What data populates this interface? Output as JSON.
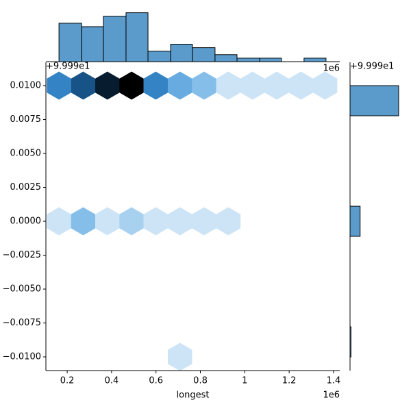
{
  "chart_data": [
    {
      "type": "hexbin",
      "x": [
        0.163,
        0.272,
        0.381,
        0.49,
        0.599,
        0.708,
        0.817,
        0.926,
        1.035,
        1.144,
        1.253,
        1.362,
        0.163,
        0.272,
        0.381,
        0.49,
        0.599,
        0.708,
        0.817,
        0.926,
        0.708
      ],
      "y": [
        0.01,
        0.01,
        0.01,
        0.01,
        0.01,
        0.01,
        0.01,
        0.01,
        0.01,
        0.01,
        0.01,
        0.01,
        0,
        0,
        0,
        0,
        0,
        0,
        0,
        0,
        -0.01
      ],
      "values": [
        6,
        8,
        10,
        11,
        6,
        4,
        3,
        1,
        1,
        1,
        1,
        1,
        1,
        3,
        1,
        2,
        1,
        1,
        1,
        1,
        1
      ],
      "cmap": [
        "#f1f7fd",
        "#8cc3eb",
        "#3b8fd4",
        "#154d80",
        "#000000"
      ],
      "xlim": [
        0.104,
        1.428
      ],
      "ylim": [
        -0.01101,
        0.01172
      ],
      "xticks": [
        0.2,
        0.4,
        0.6,
        0.8,
        1.0,
        1.2,
        1.4
      ],
      "yticks": [
        {
          "value": 0.01,
          "label": "0.0100"
        },
        {
          "value": 0.0075,
          "label": "0.0075"
        },
        {
          "value": 0.005,
          "label": "0.0050"
        },
        {
          "value": 0.0025,
          "label": "0.0025"
        },
        {
          "value": 0,
          "label": "0.0000"
        },
        {
          "value": -0.0025,
          "label": "−0.0025"
        },
        {
          "value": -0.005,
          "label": "−0.0050"
        },
        {
          "value": -0.0075,
          "label": "−0.0075"
        },
        {
          "value": -0.01,
          "label": "−0.0100"
        }
      ],
      "x_label": "longest",
      "x_offset_label": "1e6",
      "y_offset_label": "+9.999e1"
    },
    {
      "type": "histogram",
      "orientation": "vertical",
      "color": "#5a9bcb",
      "bins": [
        0.163,
        0.265,
        0.363,
        0.465,
        0.564,
        0.666,
        0.764,
        0.866,
        0.965,
        1.067,
        1.165,
        1.267,
        1.366
      ],
      "counts": [
        11,
        10,
        13,
        14,
        3,
        5,
        4,
        2,
        1,
        1,
        0,
        1
      ],
      "xlim": [
        0.104,
        1.428
      ],
      "ylim": [
        0,
        14.7
      ],
      "x_offset_label": "1e6"
    },
    {
      "type": "histogram",
      "orientation": "horizontal",
      "color": "#5a9bcb",
      "bins": [
        -0.01,
        -0.00778,
        -0.00556,
        -0.00333,
        -0.00111,
        0.00111,
        0.00333,
        0.00556,
        0.00778,
        0.01
      ],
      "counts": [
        1,
        0,
        0,
        0,
        11,
        0,
        0,
        0,
        53
      ],
      "ylim": [
        -0.01101,
        0.01172
      ],
      "xlim": [
        0,
        62
      ],
      "y_offset_label": "+9.999e1"
    }
  ]
}
